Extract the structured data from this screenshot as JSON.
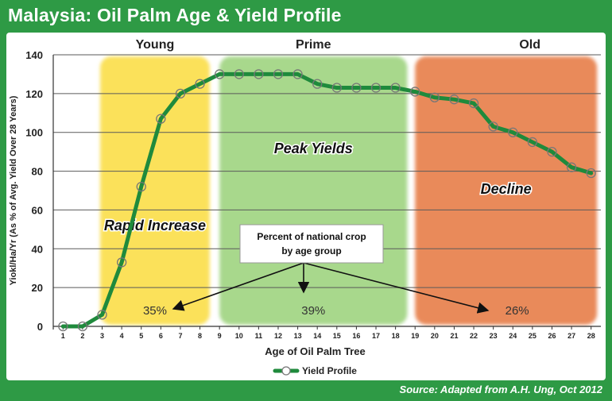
{
  "title": "Malaysia: Oil Palm Age & Yield Profile",
  "source": "Source: Adapted from A.H. Ung, Oct 2012",
  "chart_data": {
    "type": "line",
    "title": "Malaysia: Oil Palm Age & Yield Profile",
    "xlabel": "Age of Oil Palm Tree",
    "ylabel": "Yiokl/Ha/Yr (As % of Avg. Yield Over 28 Years)",
    "ylim": [
      0,
      140
    ],
    "yticks": [
      0,
      20,
      40,
      60,
      80,
      100,
      120,
      140
    ],
    "x": [
      1,
      2,
      3,
      4,
      5,
      6,
      7,
      8,
      9,
      10,
      11,
      12,
      13,
      14,
      15,
      16,
      17,
      18,
      19,
      20,
      21,
      22,
      23,
      24,
      25,
      26,
      27,
      28
    ],
    "series": [
      {
        "name": "Yield Profile",
        "color": "#1f8a3c",
        "values": [
          0,
          0,
          6,
          33,
          72,
          107,
          120,
          125,
          130,
          130,
          130,
          130,
          130,
          125,
          123,
          123,
          123,
          123,
          121,
          118,
          117,
          115,
          103,
          100,
          95,
          90,
          82,
          79
        ]
      }
    ],
    "zones": [
      {
        "name": "Young",
        "label": "Rapid Increase",
        "percent": "35%",
        "from": 2.9,
        "to": 8.5,
        "color": "#fbe15a"
      },
      {
        "name": "Prime",
        "label": "Peak Yields",
        "percent": "39%",
        "from": 9.0,
        "to": 18.6,
        "color": "#a8d88c"
      },
      {
        "name": "Old",
        "label": "Decline",
        "percent": "26%",
        "from": 19.0,
        "to": 28.3,
        "color": "#e98a5a"
      }
    ],
    "callout": [
      "Percent of national crop",
      "by age group"
    ],
    "grid": true,
    "legend": "bottom-center"
  }
}
